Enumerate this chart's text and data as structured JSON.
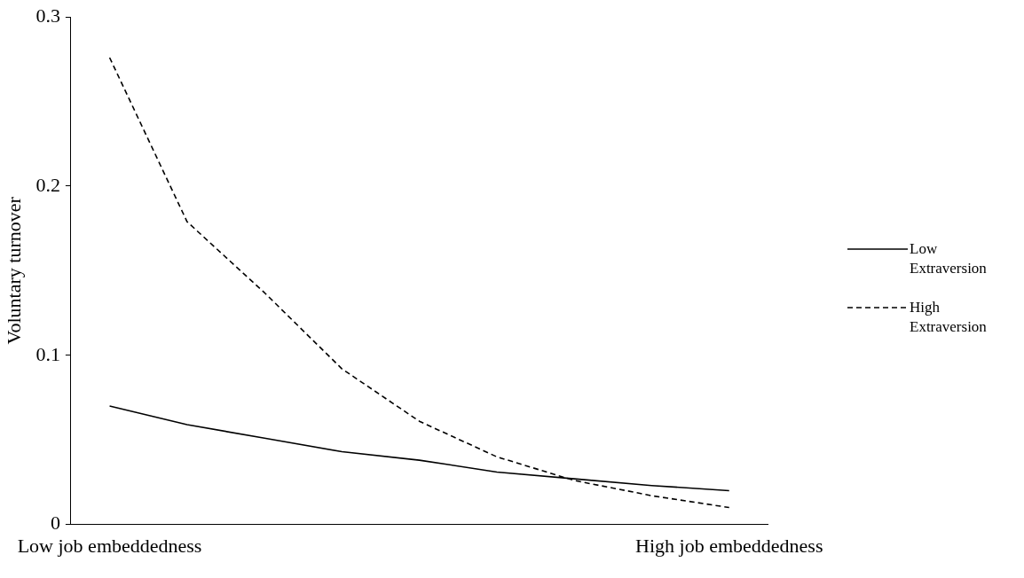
{
  "chart_data": {
    "type": "line",
    "ylabel": "Voluntary turnover",
    "categories": [
      "Low job embeddedness",
      null,
      null,
      null,
      null,
      null,
      null,
      null,
      "High job embeddedness"
    ],
    "series": [
      {
        "name": "Low Extraversion",
        "color": "#000000",
        "line_style": "solid",
        "values": [
          0.07,
          0.059,
          0.051,
          0.043,
          0.038,
          0.031,
          0.027,
          0.023,
          0.02
        ]
      },
      {
        "name": "High Extraversion",
        "color": "#000000",
        "line_style": "dashed",
        "values": [
          0.276,
          0.179,
          0.137,
          0.092,
          0.061,
          0.04,
          0.026,
          0.017,
          0.01
        ]
      }
    ],
    "ylim": [
      0,
      0.3
    ],
    "yticks": [
      0,
      0.1,
      0.2,
      0.3
    ],
    "grid": false,
    "legend": "right",
    "marker": "none"
  }
}
